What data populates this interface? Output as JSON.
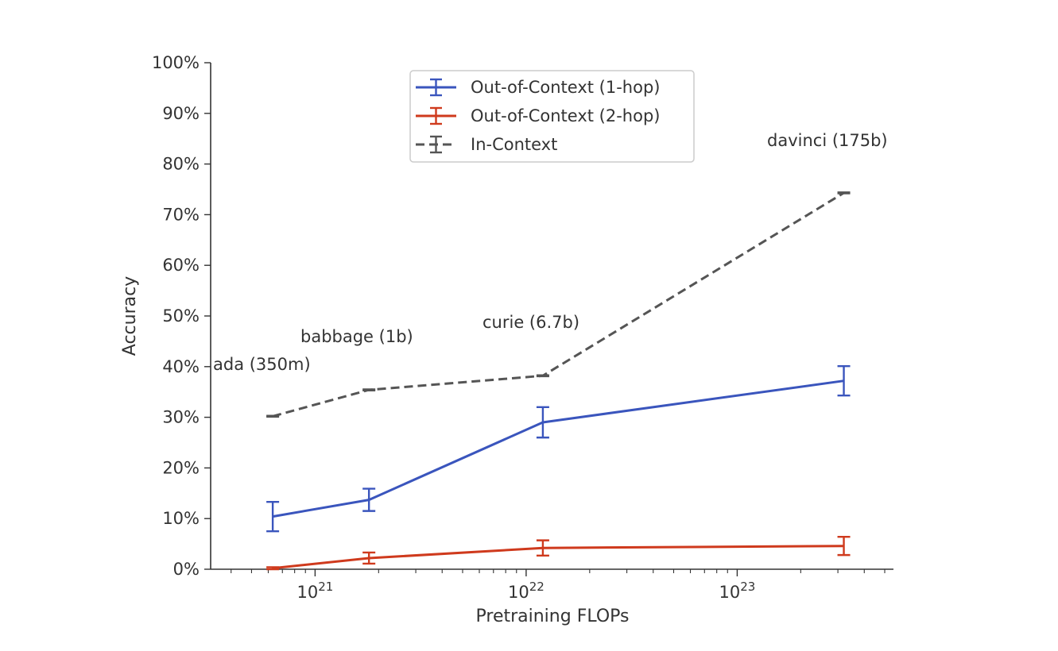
{
  "chart_data": {
    "type": "line",
    "xlabel": "Pretraining FLOPs",
    "ylabel": "Accuracy",
    "x_scale": "log",
    "xlim": [
      3.2e+20,
      5.5e+23
    ],
    "ylim": [
      0,
      100
    ],
    "x_ticks": [
      1e+21,
      1e+22,
      1e+23
    ],
    "x_tick_labels": [
      {
        "base": "10",
        "exp": "21"
      },
      {
        "base": "10",
        "exp": "22"
      },
      {
        "base": "10",
        "exp": "23"
      }
    ],
    "y_ticks": [
      0,
      10,
      20,
      30,
      40,
      50,
      60,
      70,
      80,
      90,
      100
    ],
    "y_tick_labels": [
      "0%",
      "10%",
      "20%",
      "30%",
      "40%",
      "50%",
      "60%",
      "70%",
      "80%",
      "90%",
      "100%"
    ],
    "grid": false,
    "legend_position": "top-center",
    "series": [
      {
        "name": "Out-of-Context (1-hop)",
        "color": "#3a55bd",
        "style": "solid",
        "points": [
          {
            "x": 6.3e+20,
            "y": 10.4,
            "err": 2.9
          },
          {
            "x": 1.8e+21,
            "y": 13.7,
            "err": 2.2
          },
          {
            "x": 1.2e+22,
            "y": 29.0,
            "err": 3.0
          },
          {
            "x": 3.2e+23,
            "y": 37.2,
            "err": 2.9
          }
        ]
      },
      {
        "name": "Out-of-Context (2-hop)",
        "color": "#cf3a1d",
        "style": "solid",
        "points": [
          {
            "x": 6.3e+20,
            "y": 0.2,
            "err": 0.2
          },
          {
            "x": 1.8e+21,
            "y": 2.2,
            "err": 1.1
          },
          {
            "x": 1.2e+22,
            "y": 4.2,
            "err": 1.5
          },
          {
            "x": 3.2e+23,
            "y": 4.6,
            "err": 1.8
          }
        ]
      },
      {
        "name": "In-Context",
        "color": "#555555",
        "style": "dashed",
        "points": [
          {
            "x": 6.3e+20,
            "y": 30.2,
            "err": 0.1
          },
          {
            "x": 1.8e+21,
            "y": 35.4,
            "err": 0.1
          },
          {
            "x": 1.2e+22,
            "y": 38.2,
            "err": 0.1
          },
          {
            "x": 3.2e+23,
            "y": 74.3,
            "err": 0.1
          }
        ]
      }
    ],
    "annotations": [
      {
        "text": "ada (350m)"
      },
      {
        "text": "babbage (1b)"
      },
      {
        "text": "curie (6.7b)"
      },
      {
        "text": "davinci (175b)"
      }
    ]
  }
}
